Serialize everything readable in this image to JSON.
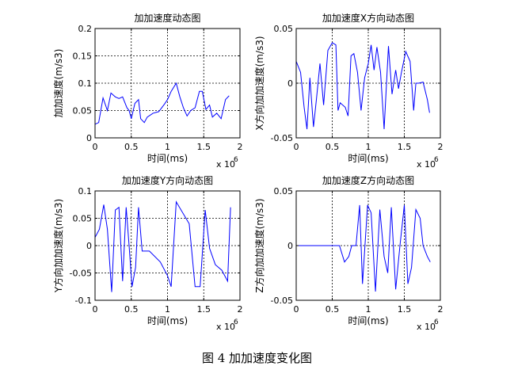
{
  "figure_caption": "图 4  加加速度变化图",
  "chart_data": [
    {
      "type": "line",
      "title": "加加速度动态图",
      "xlabel": "时间(ms)",
      "ylabel": "加加速度(m/s3)",
      "x_multiplier_label": "x 10",
      "x_multiplier_exp": "6",
      "xlim": [
        0,
        2
      ],
      "ylim": [
        0,
        0.2
      ],
      "xticks": [
        0,
        0.5,
        1,
        1.5,
        2
      ],
      "xtick_labels": [
        "0",
        "0.5",
        "1",
        "1.5",
        "2"
      ],
      "yticks": [
        0,
        0.05,
        0.1,
        0.15,
        0.2
      ],
      "ytick_labels": [
        "0",
        "0.05",
        "0.1",
        "0.15",
        "0.2"
      ],
      "grid": true,
      "color": "#0000ff",
      "x": [
        0.0,
        0.05,
        0.11,
        0.17,
        0.22,
        0.28,
        0.33,
        0.38,
        0.44,
        0.47,
        0.5,
        0.55,
        0.6,
        0.63,
        0.68,
        0.72,
        0.8,
        0.88,
        0.96,
        1.0,
        1.05,
        1.12,
        1.17,
        1.22,
        1.27,
        1.32,
        1.38,
        1.44,
        1.48,
        1.53,
        1.58,
        1.62,
        1.68,
        1.74,
        1.8,
        1.85
      ],
      "y": [
        0.025,
        0.028,
        0.073,
        0.05,
        0.082,
        0.075,
        0.072,
        0.075,
        0.055,
        0.05,
        0.035,
        0.063,
        0.07,
        0.035,
        0.028,
        0.038,
        0.045,
        0.048,
        0.062,
        0.07,
        0.085,
        0.1,
        0.075,
        0.055,
        0.04,
        0.05,
        0.055,
        0.085,
        0.085,
        0.052,
        0.06,
        0.038,
        0.045,
        0.035,
        0.07,
        0.077
      ]
    },
    {
      "type": "line",
      "title": "加加速度X方向动态图",
      "xlabel": "时间(ms)",
      "ylabel": "X方向加加速度(m/s3)",
      "x_multiplier_label": "x 10",
      "x_multiplier_exp": "6",
      "xlim": [
        0,
        2
      ],
      "ylim": [
        -0.05,
        0.05
      ],
      "xticks": [
        0,
        0.5,
        1,
        1.5,
        2
      ],
      "xtick_labels": [
        "0",
        "0.5",
        "1",
        "1.5",
        "2"
      ],
      "yticks": [
        -0.05,
        0,
        0.05
      ],
      "ytick_labels": [
        "-0.05",
        "0",
        "0.05"
      ],
      "grid": true,
      "color": "#0000ff",
      "x": [
        0.0,
        0.06,
        0.11,
        0.15,
        0.19,
        0.24,
        0.28,
        0.33,
        0.38,
        0.44,
        0.5,
        0.55,
        0.58,
        0.61,
        0.68,
        0.72,
        0.76,
        0.8,
        0.85,
        0.9,
        0.95,
        1.0,
        1.04,
        1.08,
        1.12,
        1.17,
        1.22,
        1.28,
        1.33,
        1.38,
        1.42,
        1.46,
        1.52,
        1.58,
        1.63,
        1.66,
        1.7,
        1.76,
        1.82,
        1.85
      ],
      "y": [
        0.02,
        0.01,
        -0.022,
        -0.042,
        0.005,
        -0.04,
        -0.015,
        0.018,
        -0.02,
        0.03,
        0.037,
        0.035,
        -0.025,
        -0.018,
        -0.022,
        -0.03,
        0.025,
        0.027,
        0.01,
        -0.025,
        0.005,
        0.018,
        0.035,
        0.012,
        0.033,
        0.01,
        -0.042,
        0.034,
        -0.01,
        0.012,
        -0.005,
        0.01,
        0.029,
        0.02,
        -0.025,
        0.0,
        0.0,
        0.001,
        -0.015,
        -0.027
      ]
    },
    {
      "type": "line",
      "title": "加加速度Y方向动态图",
      "xlabel": "时间(ms)",
      "ylabel": "Y方向加加速度(m/s3)",
      "x_multiplier_label": "x 10",
      "x_multiplier_exp": "6",
      "xlim": [
        0,
        2
      ],
      "ylim": [
        -0.1,
        0.1
      ],
      "xticks": [
        0,
        0.5,
        1,
        1.5,
        2
      ],
      "xtick_labels": [
        "0",
        "0.5",
        "1",
        "1.5",
        "2"
      ],
      "yticks": [
        -0.1,
        -0.05,
        0,
        0.05,
        0.1
      ],
      "ytick_labels": [
        "-0.1",
        "-0.05",
        "0",
        "0.05",
        "0.1"
      ],
      "grid": true,
      "color": "#0000ff",
      "x": [
        0.0,
        0.06,
        0.12,
        0.17,
        0.23,
        0.28,
        0.33,
        0.38,
        0.43,
        0.47,
        0.51,
        0.56,
        0.6,
        0.65,
        0.75,
        0.9,
        1.0,
        1.05,
        1.12,
        1.3,
        1.38,
        1.45,
        1.52,
        1.58,
        1.66,
        1.75,
        1.83,
        1.87
      ],
      "y": [
        0.015,
        0.03,
        0.075,
        0.03,
        -0.085,
        0.065,
        0.07,
        -0.065,
        0.07,
        0.0,
        -0.075,
        -0.04,
        0.07,
        -0.01,
        -0.01,
        -0.03,
        -0.055,
        -0.075,
        0.08,
        0.04,
        -0.075,
        -0.075,
        0.065,
        -0.005,
        -0.035,
        -0.045,
        -0.065,
        0.07
      ]
    },
    {
      "type": "line",
      "title": "加加速度Z方向动态图",
      "xlabel": "时间(ms)",
      "ylabel": "Z方向加加速度(m/s3)",
      "x_multiplier_label": "x 10",
      "x_multiplier_exp": "6",
      "xlim": [
        0,
        2
      ],
      "ylim": [
        -0.05,
        0.05
      ],
      "xticks": [
        0,
        0.5,
        1,
        1.5,
        2
      ],
      "xtick_labels": [
        "0",
        "0.5",
        "1",
        "1.5",
        "2"
      ],
      "yticks": [
        -0.05,
        0,
        0.05
      ],
      "ytick_labels": [
        "-0.05",
        "0",
        "0.05"
      ],
      "grid": true,
      "color": "#0000ff",
      "x": [
        0.0,
        0.55,
        0.6,
        0.67,
        0.73,
        0.77,
        0.83,
        0.88,
        0.92,
        0.99,
        1.04,
        1.1,
        1.16,
        1.22,
        1.27,
        1.32,
        1.38,
        1.44,
        1.5,
        1.55,
        1.6,
        1.66,
        1.72,
        1.76,
        1.82,
        1.86
      ],
      "y": [
        0.0,
        0.0,
        0.0,
        -0.015,
        -0.01,
        0.0,
        0.0,
        0.037,
        -0.035,
        0.037,
        0.03,
        -0.042,
        0.033,
        -0.01,
        -0.025,
        0.035,
        -0.04,
        0.0,
        0.037,
        -0.035,
        -0.02,
        0.033,
        0.025,
        0.0,
        -0.01,
        -0.015
      ]
    }
  ]
}
